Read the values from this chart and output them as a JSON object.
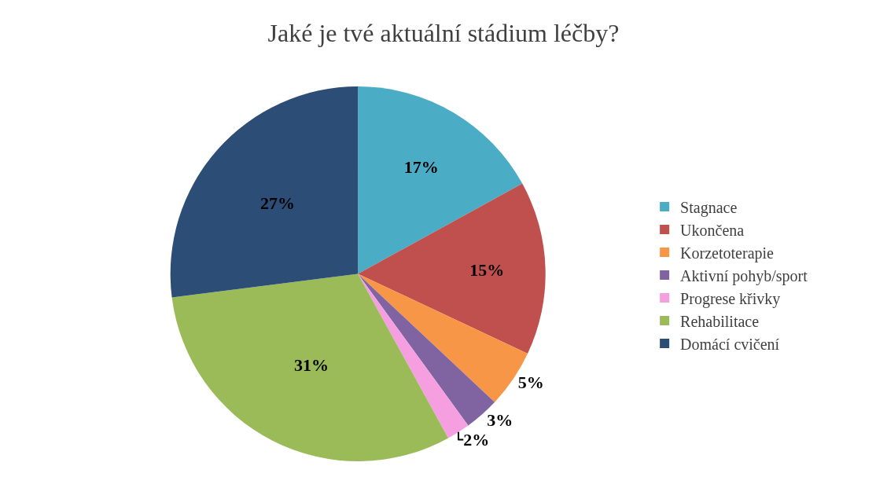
{
  "chart_data": {
    "type": "pie",
    "title": "Jaké je tvé aktuální stádium léčby?",
    "categories": [
      "Stagnace",
      "Ukončena",
      "Korzetoterapie",
      "Aktivní pohyb/sport",
      "Progrese křivky",
      "Rehabilitace",
      "Domácí cvičení"
    ],
    "values": [
      17,
      15,
      5,
      3,
      2,
      31,
      27
    ],
    "colors": [
      "#4bacc6",
      "#c0504d",
      "#f79646",
      "#8064a2",
      "#f59fe0",
      "#9bbb59",
      "#2c4d75"
    ],
    "value_labels": [
      "17%",
      "15%",
      "5%",
      "3%",
      "2%",
      "31%",
      "27%"
    ],
    "legend": "right"
  }
}
